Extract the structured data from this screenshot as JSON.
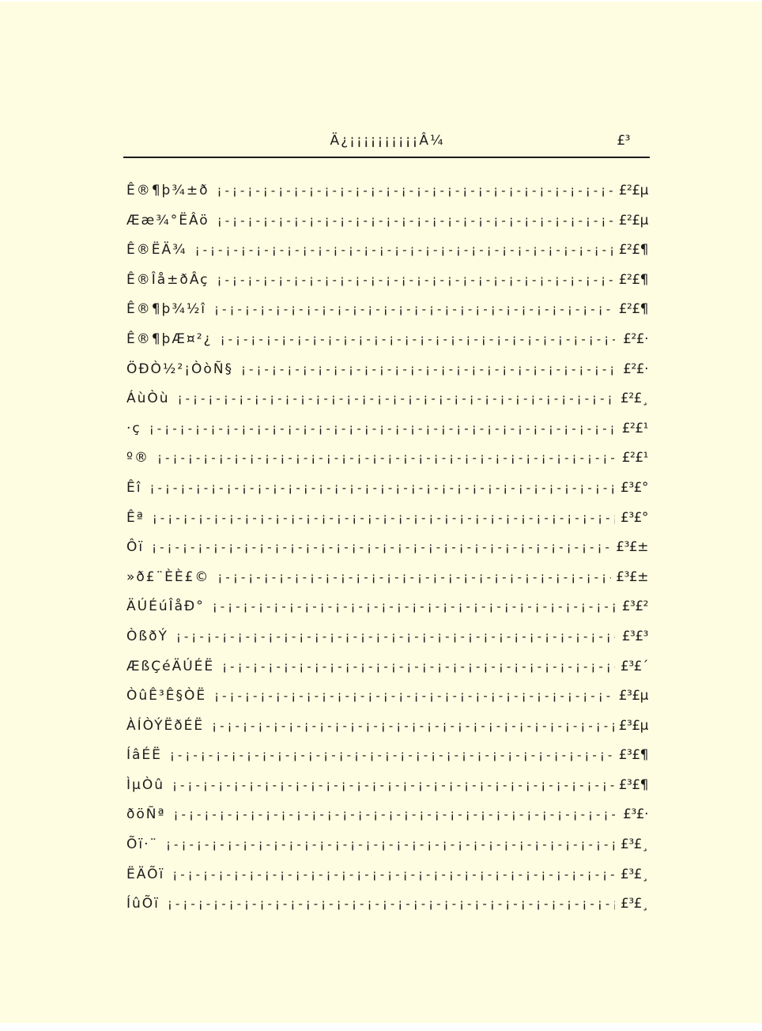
{
  "page_background": "#fefce1",
  "text_color": "#1b1b1b",
  "header": {
    "title": "Ä¿¡¡¡¡¡¡¡¡¡¡Â¼",
    "page_number": "£³"
  },
  "leader_unit": "¡-",
  "toc": {
    "entries": [
      {
        "title": "Ê®¶þ¾­±ð",
        "page": "£²£µ"
      },
      {
        "title": "Ææ¾­°ËÂö",
        "page": "£²£µ"
      },
      {
        "title": "Ê®ËÄ¾­",
        "page": "£²£¶"
      },
      {
        "title": "Ê®Îå±ðÂç",
        "page": "£²£¶"
      },
      {
        "title": "Ê®¶þ¾­½î",
        "page": "£²£¶"
      },
      {
        "title": "Ê®¶þÆ¤²¿",
        "page": "£²£·"
      },
      {
        "title": "ÖÐÒ½²¡ÒòÑ§",
        "page": "£²£·"
      },
      {
        "title": "ÁùÒù",
        "page": "£²£¸"
      },
      {
        "title": "·ç",
        "page": "£²£¹"
      },
      {
        "title": "º®",
        "page": "£²£¹"
      },
      {
        "title": "Êî",
        "page": "£³£°"
      },
      {
        "title": "Êª",
        "page": "£³£°"
      },
      {
        "title": "Ôï",
        "page": "£³£±"
      },
      {
        "title": "»ð£¨ÈÈ£©",
        "page": "£³£±"
      },
      {
        "title": "ÄÚÉúÎåÐ°",
        "page": "£³£²"
      },
      {
        "title": "ÒßðÝ",
        "page": "£³£³"
      },
      {
        "title": "ÆßÇéÄÚÉË",
        "page": "£³£´"
      },
      {
        "title": "ÒûÊ³Ê§ÒË",
        "page": "£³£µ"
      },
      {
        "title": "ÀÍÒÝËðÉË",
        "page": "£³£µ"
      },
      {
        "title": "ÍâÉË",
        "page": "£³£¶"
      },
      {
        "title": "ÌµÒû",
        "page": "£³£¶"
      },
      {
        "title": "ðöÑª",
        "page": "£³£·"
      },
      {
        "title": "Õï·¨",
        "page": "£³£¸"
      },
      {
        "title": "ËÄÕï",
        "page": "£³£¸"
      },
      {
        "title": "ÍûÕï",
        "page": "£³£¸"
      }
    ]
  }
}
